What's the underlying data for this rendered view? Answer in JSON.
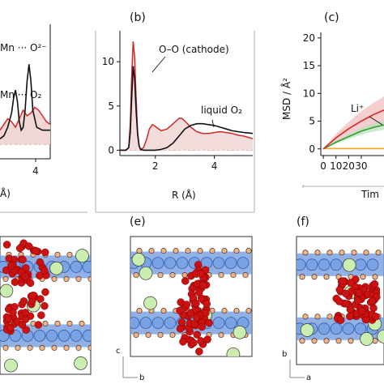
{
  "panel_labels": {
    "b": "(b)",
    "c": "(c)",
    "e": "(e)",
    "f": "(f)"
  },
  "panel_a": {
    "annotation_top": "Mn ··· O²⁻",
    "annotation_bottom": "Mn ··· O₂",
    "tick_label": "4",
    "xlabel_fragment": "Å)"
  },
  "panel_e": {
    "axis_c": "c",
    "axis_b": "b"
  },
  "panel_f": {
    "axis_b": "b",
    "axis_a": "a"
  },
  "colors": {
    "red": "#d62728",
    "black": "#111111",
    "shade": "#f1d6d6",
    "green": "#2ca02c",
    "orange": "#ff9f1c",
    "dashed": "#e8b0b0",
    "slab": "#6b95dd",
    "oxygen_red": "#cc1111",
    "li_green": "#c9eeb0",
    "peach": "#f5b183"
  },
  "chart_data": [
    {
      "panel": "a",
      "type": "line",
      "xlim": [
        2.8,
        5.4
      ],
      "ylim": [
        -0.5,
        4.2
      ],
      "series": [
        {
          "x": [
            2.8,
            3.0,
            3.2,
            3.4,
            3.5,
            3.6,
            3.7,
            3.8,
            3.9,
            4.0,
            4.1,
            4.2,
            4.3,
            4.4,
            4.5,
            4.7,
            5.0,
            5.4
          ],
          "y": [
            0.2,
            0.3,
            0.6,
            1.1,
            1.6,
            1.9,
            1.5,
            0.8,
            0.5,
            0.6,
            1.2,
            2.2,
            2.8,
            2.2,
            1.2,
            0.6,
            0.5,
            0.5
          ]
        },
        {
          "x": [
            2.8,
            3.0,
            3.2,
            3.4,
            3.6,
            3.8,
            4.0,
            4.2,
            4.4,
            4.6,
            4.8,
            5.0,
            5.2,
            5.4
          ],
          "y": [
            0.5,
            0.7,
            0.9,
            0.8,
            0.6,
            0.9,
            1.2,
            1.0,
            1.1,
            1.3,
            1.2,
            1.0,
            0.8,
            0.7
          ]
        }
      ],
      "annotations": [
        "Mn ··· O²⁻",
        "Mn ··· O₂"
      ]
    },
    {
      "panel": "b",
      "type": "line",
      "title": "(b)",
      "xlabel": "R (Å)",
      "xlim": [
        0.8,
        5.3
      ],
      "ylim": [
        -0.6,
        13.5
      ],
      "xticks": [
        2,
        4
      ],
      "yticks": [
        0,
        5,
        10
      ],
      "series": [
        {
          "x": [
            0.8,
            1.0,
            1.1,
            1.15,
            1.2,
            1.25,
            1.3,
            1.35,
            1.4,
            1.45,
            1.5,
            1.6,
            1.8,
            2.0,
            2.2,
            2.4,
            2.6,
            2.8,
            3.0,
            3.2,
            3.4,
            3.6,
            3.8,
            4.0,
            4.2,
            4.4,
            4.6,
            4.8,
            5.0,
            5.3
          ],
          "y": [
            0,
            0,
            0.3,
            2.0,
            6.0,
            9.5,
            8.0,
            4.5,
            1.8,
            0.5,
            0.1,
            0,
            0,
            0,
            0.1,
            0.3,
            0.8,
            1.6,
            2.4,
            2.8,
            3.0,
            3.0,
            2.9,
            2.8,
            2.6,
            2.4,
            2.2,
            2.1,
            2.0,
            1.9
          ]
        },
        {
          "x": [
            0.8,
            1.0,
            1.1,
            1.15,
            1.2,
            1.25,
            1.3,
            1.35,
            1.4,
            1.45,
            1.5,
            1.6,
            1.7,
            1.8,
            1.9,
            2.0,
            2.2,
            2.4,
            2.6,
            2.8,
            2.9,
            3.0,
            3.2,
            3.4,
            3.6,
            3.8,
            4.0,
            4.2,
            4.4,
            4.6,
            4.8,
            5.0,
            5.3
          ],
          "y": [
            0,
            0,
            0.3,
            3.0,
            8.5,
            12.3,
            10.5,
            6.0,
            2.0,
            0.5,
            0.1,
            0.3,
            1.2,
            2.4,
            2.9,
            2.7,
            2.2,
            2.4,
            3.0,
            3.6,
            3.6,
            3.3,
            2.6,
            2.1,
            1.9,
            1.9,
            2.0,
            2.1,
            2.0,
            1.9,
            1.7,
            1.6,
            1.3
          ]
        }
      ],
      "annotations": [
        "O–O (cathode)",
        "liquid O₂"
      ]
    },
    {
      "panel": "c",
      "type": "line",
      "title": "(c)",
      "xlabel": "Tim",
      "ylabel": "MSD / Å²",
      "xlim": [
        -2,
        48
      ],
      "ylim": [
        -1.2,
        21
      ],
      "xticks": [
        0,
        10,
        20,
        30
      ],
      "yticks": [
        0,
        5,
        10,
        15,
        20
      ],
      "series": [
        {
          "name": "Li⁺",
          "x": [
            0,
            10,
            20,
            30,
            40,
            48
          ],
          "y": [
            0,
            2.0,
            3.6,
            5.0,
            6.2,
            7.0
          ]
        },
        {
          "x": [
            0,
            10,
            20,
            30,
            40,
            48
          ],
          "y": [
            0,
            1.2,
            2.2,
            3.2,
            3.9,
            4.3
          ]
        },
        {
          "x": [
            0,
            10,
            20,
            30,
            40,
            48
          ],
          "y": [
            0.05,
            0.05,
            0.05,
            0.05,
            0.05,
            0.05
          ]
        }
      ],
      "annotations": [
        "Li⁺"
      ]
    }
  ]
}
